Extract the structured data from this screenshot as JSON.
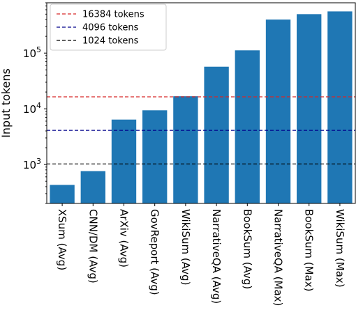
{
  "chart_data": {
    "type": "bar",
    "title": "",
    "xlabel": "",
    "ylabel": "Input tokens",
    "yscale": "log",
    "ylim": [
      200,
      800000
    ],
    "yticks": [
      1000,
      10000,
      100000
    ],
    "ytick_labels": [
      {
        "base": "10",
        "exp": "3"
      },
      {
        "base": "10",
        "exp": "4"
      },
      {
        "base": "10",
        "exp": "5"
      }
    ],
    "bar_color": "#1f77b4",
    "grid": false,
    "categories": [
      "XSum (Avg)",
      "CNN/DM (Avg)",
      "ArXiv (Avg)",
      "GovReport (Avg)",
      "WikiSum (Avg)",
      "NarrativeQA (Avg)",
      "BookSum (Avg)",
      "NarrativeQA (Max)",
      "BookSum (Max)",
      "WikiSum (Max)"
    ],
    "values": [
      430,
      760,
      6400,
      9400,
      16800,
      57000,
      112000,
      400000,
      500000,
      560000
    ],
    "reference_lines": [
      {
        "label": "16384 tokens",
        "value": 16384,
        "color": "#d62728",
        "style": "dashed"
      },
      {
        "label": "4096 tokens",
        "value": 4096,
        "color": "#00008b",
        "style": "dashed"
      },
      {
        "label": "1024 tokens",
        "value": 1024,
        "color": "#000000",
        "style": "dashed"
      }
    ],
    "legend_position": "top-left"
  }
}
